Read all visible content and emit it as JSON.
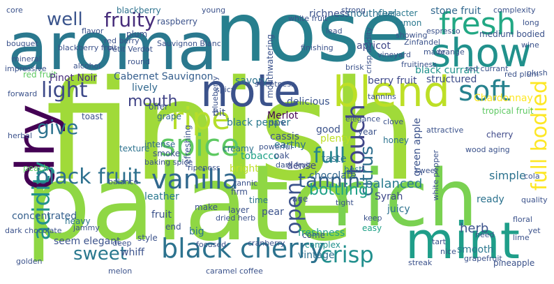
{
  "cloud": {
    "colors": {
      "background": "#ffffff",
      "palette": [
        "#440154",
        "#46327e",
        "#365c8d",
        "#277f8e",
        "#1fa187",
        "#4ac16d",
        "#a0da39",
        "#fde725"
      ]
    },
    "words": {
      "finish": "finish",
      "palate": "palate",
      "nose": "nose",
      "aroma": "aroma",
      "rich": "rich",
      "blend": "blend",
      "note": "note",
      "fresh": "fresh",
      "show": "show",
      "dry": "dry",
      "mint": "mint",
      "black_cherry": "black cherry",
      "vanilla": "vanilla",
      "black_fruit": "black fruit",
      "spice": "spice",
      "soft": "soft",
      "touch": "touch",
      "ripe": "ripe",
      "fruity": "fruity",
      "light": "light",
      "mouth": "mouth",
      "acidity": "acidity",
      "tannin": "tannin",
      "open": "open",
      "sweet": "sweet",
      "full_bodied": "full bodied",
      "citrus": "citrus",
      "crisp": "crisp",
      "full": "full",
      "well": "well",
      "give": "give",
      "bottling": "bottling",
      "balanced": "balanced",
      "structured": "structured",
      "black_currant": "black currant",
      "berry_fruit": "berry fruit",
      "red_fruit": "red fruit",
      "cabernet_sauvignon": "Cabernet Sauvignon",
      "stone_fruit": "stone fruit",
      "richness": "richness",
      "mouthfeel": "mouthfeel",
      "apricot": "apricot",
      "herb": "herb",
      "smooth": "smooth",
      "texture": "texture",
      "tobacco": "tobacco",
      "cassis": "cassis",
      "earthy": "earthy",
      "chocolate": "chocolate",
      "freshness": "freshness",
      "dense": "dense",
      "black_pepper": "black pepper",
      "merlot": "Merlot",
      "delicious": "delicious",
      "savory": "savory",
      "lively": "lively",
      "pinot_noir": "Pinot Noir",
      "concentrated": "concentrated",
      "leather": "leather",
      "seem_elegant": "seem elegant",
      "whiff": "whiff",
      "complex": "complex",
      "vintage": "vintage",
      "syrah": "Syrah",
      "ready": "ready",
      "simple": "simple",
      "grape": "grape",
      "peach": "peach",
      "toast": "toast",
      "oak": "oak",
      "cherry": "cherry",
      "plum": "plum",
      "lemon": "lemon",
      "raspberry": "raspberry",
      "blackberry": "blackberry",
      "character": "character",
      "medium_bodied": "medium bodied",
      "chardonnay": "Chardonnay",
      "tropical_fruit": "tropical fruit",
      "green_apple": "green apple",
      "pineapple": "pineapple",
      "honey": "honey",
      "good": "good",
      "plenty": "plenty",
      "taste": "taste",
      "intense": "intense",
      "smoke": "smoke",
      "firm": "firm",
      "time": "time",
      "layer": "layer",
      "pear": "pear",
      "age": "age",
      "easy": "easy",
      "juicy": "juicy",
      "best": "best",
      "year": "year",
      "offer": "offer",
      "bright": "bright",
      "creamy": "creamy",
      "refreshing": "refreshing",
      "big": "big",
      "make": "make",
      "fruit": "fruit",
      "mouthwatering": "mouthwatering",
      "heavy": "heavy",
      "bit": "bit",
      "sauvignon_blanc": "Sauvignon Blanc",
      "petit_verdot": "Petit Verdot",
      "zinfandel": "Zinfandel",
      "red_currant": "red currant",
      "red_plum": "red plum",
      "grapefruit": "grapefruit",
      "lime": "lime",
      "espresso": "espresso",
      "mineral": "mineral",
      "bouquet": "bouquet",
      "vineyard": "vineyard",
      "strong": "strong",
      "complexity": "complexity",
      "dark_chocolate": "dark chocolate",
      "white_pepper": "white pepper",
      "wood_aging": "wood aging",
      "sweetness": "sweetness",
      "plush": "plush",
      "tannic": "tannic",
      "focused": "focused",
      "cranberry": "cranberry",
      "floral": "floral",
      "quality": "quality",
      "dried_herb": "dried herb",
      "baking_spice": "baking spice",
      "nice": "nice",
      "golden": "golden",
      "round": "round",
      "fruitiness": "fruitiness",
      "core": "core",
      "young": "young",
      "long": "long",
      "flavor": "flavor",
      "crisp_acidity": "crisp acidity",
      "mouthfeel2": "lead",
      "made": "made",
      "wine": "wine",
      "come": "come",
      "keep": "keep",
      "end": "end",
      "forward": "forward",
      "style": "style",
      "spicy": "spicy",
      "sweet_2": "sweet",
      "melon": "melon",
      "caramel": "caramel",
      "coffee": "coffee",
      "dark": "dark",
      "powerful": "powerful",
      "jammy": "jammy",
      "elegance": "elegance",
      "ripeness": "ripeness",
      "balance": "balance",
      "cola": "cola",
      "streak": "streak",
      "need": "need",
      "yet": "yet",
      "deep": "deep",
      "tight": "tight",
      "clove": "clove",
      "blueberry": "blueberry",
      "herbal": "herbal",
      "dark_fruit": "dark fruit",
      "tart": "tart",
      "orange": "orange",
      "attractive": "attractive",
      "blackberry_fruit": "blackberry fruit",
      "finishing": "finishing",
      "showing": "showing",
      "white_fruit": "white fruit",
      "tannins": "tannins",
      "red_berry": "red berry",
      "impressive": "impressive",
      "alcohol": "alcohol",
      "brisk": "brisk"
    }
  }
}
